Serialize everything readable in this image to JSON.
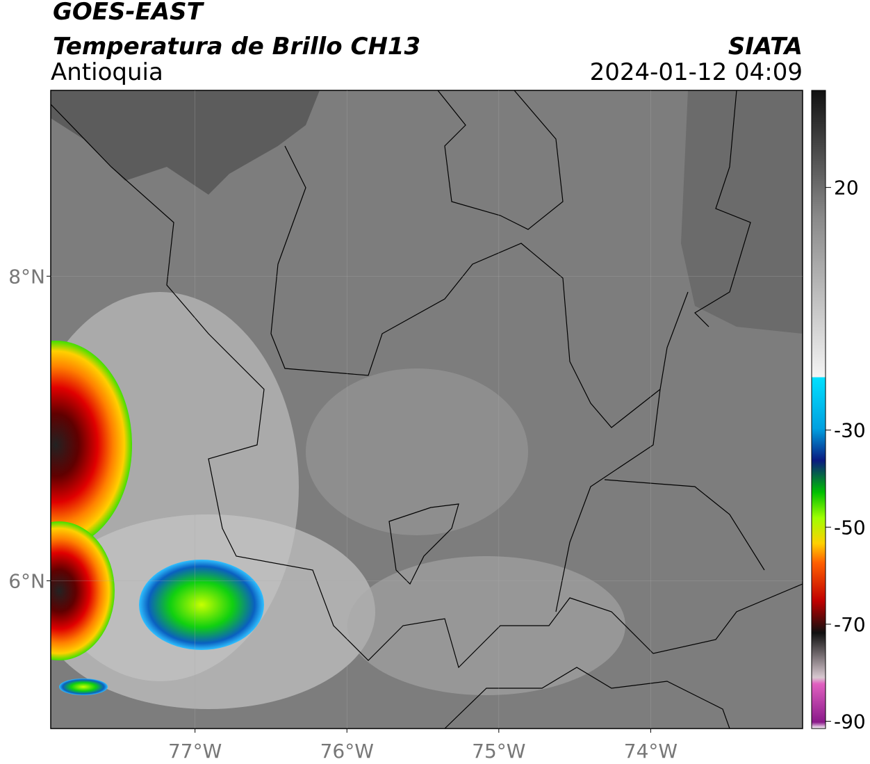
{
  "header": {
    "title": "GOES-EAST",
    "subtitle": "Temperatura de Brillo CH13",
    "region": "Antioquia",
    "source": "SIATA",
    "datetime": "2024-01-12 04:09"
  },
  "map": {
    "xlim": [
      -77.95,
      -73.0
    ],
    "ylim": [
      5.03,
      9.22
    ],
    "xticks": [
      {
        "value": -77,
        "label": "77°W"
      },
      {
        "value": -76,
        "label": "76°W"
      },
      {
        "value": -75,
        "label": "75°W"
      },
      {
        "value": -74,
        "label": "74°W"
      }
    ],
    "yticks": [
      {
        "value": 8,
        "label": "8°N"
      },
      {
        "value": 6,
        "label": "6°N"
      }
    ]
  },
  "colorbar": {
    "lim": [
      -91.5,
      40
    ],
    "ticks": [
      20,
      -30,
      -50,
      -70,
      -90
    ]
  }
}
